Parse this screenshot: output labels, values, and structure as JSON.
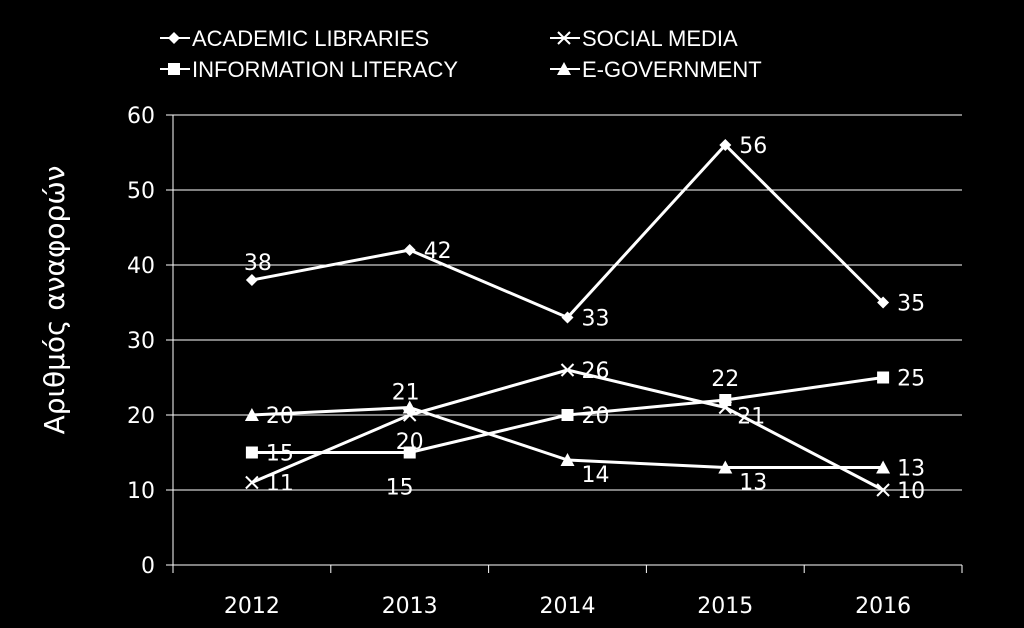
{
  "chart_data": {
    "type": "line",
    "categories": [
      "2012",
      "2013",
      "2014",
      "2015",
      "2016"
    ],
    "ylabel": "Αριθμός   αναφορών",
    "ylim": [
      0,
      60
    ],
    "yticks": [
      "0",
      "10",
      "20",
      "30",
      "40",
      "50",
      "60"
    ],
    "grid": true,
    "legend_position": "top",
    "series": [
      {
        "name": "ACADEMIC LIBRARIES",
        "marker": "diamond",
        "values": [
          38,
          42,
          33,
          56,
          35
        ]
      },
      {
        "name": "SOCIAL MEDIA",
        "marker": "x",
        "values": [
          11,
          20,
          26,
          21,
          10
        ]
      },
      {
        "name": "INFORMATION LITERACY",
        "marker": "square",
        "values": [
          15,
          15,
          20,
          22,
          25
        ]
      },
      {
        "name": "E-GOVERNMENT",
        "marker": "triangle",
        "values": [
          20,
          21,
          14,
          13,
          13
        ]
      }
    ],
    "colors": {
      "background": "#000000",
      "foreground": "#ffffff",
      "grid": "#ffffff"
    }
  }
}
